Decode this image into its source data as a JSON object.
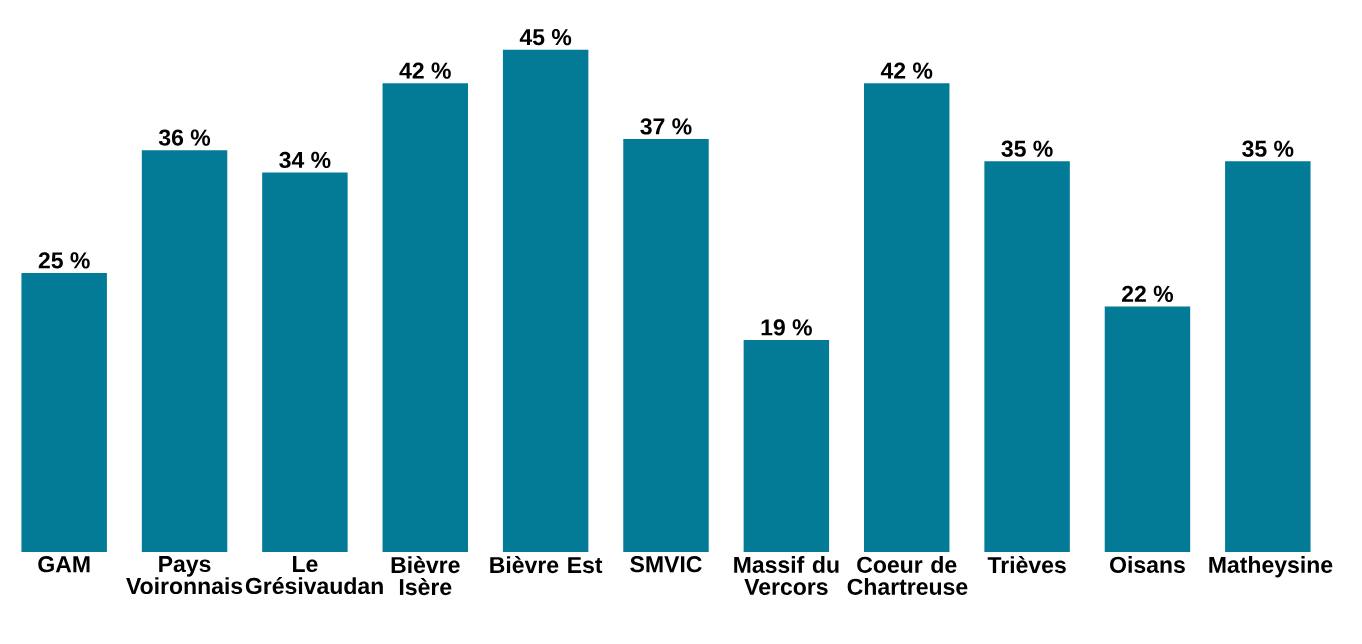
{
  "chart_data": {
    "type": "bar",
    "categories": [
      "GAM",
      "Pays Voironnais",
      "Le Grésivaudan",
      "Bièvre Isère",
      "Bièvre Est",
      "SMVIC",
      "Massif du Vercors",
      "Coeur de Chartreuse",
      "Trièves",
      "Oisans",
      "Matheysine"
    ],
    "values": [
      25,
      36,
      34,
      42,
      45,
      37,
      19,
      42,
      35,
      22,
      35
    ],
    "value_labels": [
      "25 %",
      "36 %",
      "34 %",
      "42 %",
      "45 %",
      "37 %",
      "19 %",
      "42 %",
      "35 %",
      "22 %",
      "35 %"
    ],
    "color": "#037a96"
  }
}
